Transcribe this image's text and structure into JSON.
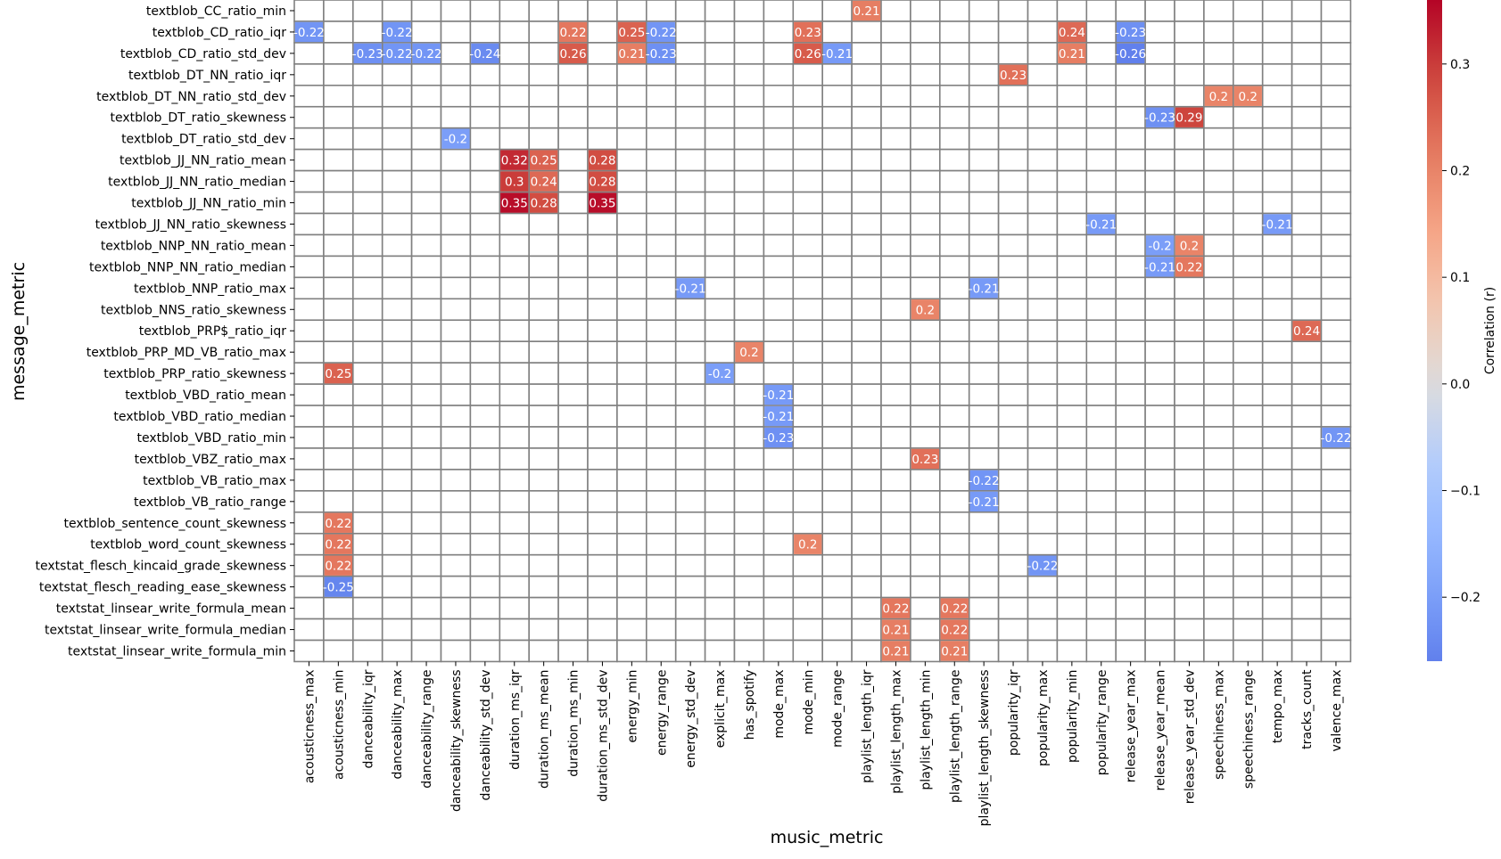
{
  "chart_data": {
    "type": "heatmap",
    "xlabel": "music_metric",
    "ylabel": "message_metric",
    "colorbar_label": "Correlation (r)",
    "colorbar_ticks": [
      "−0.2",
      "−0.1",
      "0.0",
      "0.1",
      "0.2",
      "0.3"
    ],
    "colorbar_tick_values": [
      -0.2,
      -0.1,
      0.0,
      0.1,
      0.2,
      0.3
    ],
    "vmin": -0.26,
    "vmax": 0.36,
    "colormap": "coolwarm",
    "x_categories": [
      "acousticness_max",
      "acousticness_min",
      "danceability_iqr",
      "danceability_max",
      "danceability_range",
      "danceability_skewness",
      "danceability_std_dev",
      "duration_ms_iqr",
      "duration_ms_mean",
      "duration_ms_min",
      "duration_ms_std_dev",
      "energy_min",
      "energy_range",
      "energy_std_dev",
      "explicit_max",
      "has_spotify",
      "mode_max",
      "mode_min",
      "mode_range",
      "playlist_length_iqr",
      "playlist_length_max",
      "playlist_length_min",
      "playlist_length_range",
      "playlist_length_skewness",
      "popularity_iqr",
      "popularity_max",
      "popularity_min",
      "popularity_range",
      "release_year_max",
      "release_year_mean",
      "release_year_std_dev",
      "speechiness_max",
      "speechiness_range",
      "tempo_max",
      "tracks_count",
      "valence_max"
    ],
    "y_categories": [
      "textblob_CC_ratio_min",
      "textblob_CD_ratio_iqr",
      "textblob_CD_ratio_std_dev",
      "textblob_DT_NN_ratio_iqr",
      "textblob_DT_NN_ratio_std_dev",
      "textblob_DT_ratio_skewness",
      "textblob_DT_ratio_std_dev",
      "textblob_JJ_NN_ratio_mean",
      "textblob_JJ_NN_ratio_median",
      "textblob_JJ_NN_ratio_min",
      "textblob_JJ_NN_ratio_skewness",
      "textblob_NNP_NN_ratio_mean",
      "textblob_NNP_NN_ratio_median",
      "textblob_NNP_ratio_max",
      "textblob_NNS_ratio_skewness",
      "textblob_PRP$_ratio_iqr",
      "textblob_PRP_MD_VB_ratio_max",
      "textblob_PRP_ratio_skewness",
      "textblob_VBD_ratio_mean",
      "textblob_VBD_ratio_median",
      "textblob_VBD_ratio_min",
      "textblob_VBZ_ratio_max",
      "textblob_VB_ratio_max",
      "textblob_VB_ratio_range",
      "textblob_sentence_count_skewness",
      "textblob_word_count_skewness",
      "textstat_flesch_kincaid_grade_skewness",
      "textstat_flesch_reading_ease_skewness",
      "textstat_linsear_write_formula_mean",
      "textstat_linsear_write_formula_median",
      "textstat_linsear_write_formula_min"
    ],
    "cells": [
      {
        "row": 0,
        "col": 19,
        "value": 0.21
      },
      {
        "row": 1,
        "col": 0,
        "value": -0.22
      },
      {
        "row": 1,
        "col": 3,
        "value": -0.22
      },
      {
        "row": 1,
        "col": 9,
        "value": 0.22
      },
      {
        "row": 1,
        "col": 11,
        "value": 0.25
      },
      {
        "row": 1,
        "col": 12,
        "value": -0.22
      },
      {
        "row": 1,
        "col": 17,
        "value": 0.23
      },
      {
        "row": 1,
        "col": 26,
        "value": 0.24
      },
      {
        "row": 1,
        "col": 28,
        "value": -0.23
      },
      {
        "row": 2,
        "col": 2,
        "value": -0.23
      },
      {
        "row": 2,
        "col": 3,
        "value": -0.22
      },
      {
        "row": 2,
        "col": 4,
        "value": -0.22
      },
      {
        "row": 2,
        "col": 6,
        "value": -0.24
      },
      {
        "row": 2,
        "col": 9,
        "value": 0.26
      },
      {
        "row": 2,
        "col": 11,
        "value": 0.21
      },
      {
        "row": 2,
        "col": 12,
        "value": -0.23
      },
      {
        "row": 2,
        "col": 17,
        "value": 0.26
      },
      {
        "row": 2,
        "col": 18,
        "value": -0.21
      },
      {
        "row": 2,
        "col": 26,
        "value": 0.21
      },
      {
        "row": 2,
        "col": 28,
        "value": -0.26
      },
      {
        "row": 3,
        "col": 24,
        "value": 0.23
      },
      {
        "row": 4,
        "col": 31,
        "value": 0.2
      },
      {
        "row": 4,
        "col": 32,
        "value": 0.2
      },
      {
        "row": 5,
        "col": 29,
        "value": -0.23
      },
      {
        "row": 5,
        "col": 30,
        "value": 0.29
      },
      {
        "row": 6,
        "col": 5,
        "value": -0.2
      },
      {
        "row": 7,
        "col": 7,
        "value": 0.32
      },
      {
        "row": 7,
        "col": 8,
        "value": 0.25
      },
      {
        "row": 7,
        "col": 10,
        "value": 0.28
      },
      {
        "row": 8,
        "col": 7,
        "value": 0.3
      },
      {
        "row": 8,
        "col": 8,
        "value": 0.24
      },
      {
        "row": 8,
        "col": 10,
        "value": 0.28
      },
      {
        "row": 9,
        "col": 7,
        "value": 0.35
      },
      {
        "row": 9,
        "col": 8,
        "value": 0.28
      },
      {
        "row": 9,
        "col": 10,
        "value": 0.35
      },
      {
        "row": 10,
        "col": 27,
        "value": -0.21
      },
      {
        "row": 10,
        "col": 33,
        "value": -0.21
      },
      {
        "row": 11,
        "col": 29,
        "value": -0.2
      },
      {
        "row": 11,
        "col": 30,
        "value": 0.2
      },
      {
        "row": 12,
        "col": 29,
        "value": -0.21
      },
      {
        "row": 12,
        "col": 30,
        "value": 0.22
      },
      {
        "row": 13,
        "col": 13,
        "value": -0.21
      },
      {
        "row": 13,
        "col": 23,
        "value": -0.21
      },
      {
        "row": 14,
        "col": 21,
        "value": 0.2
      },
      {
        "row": 15,
        "col": 34,
        "value": 0.24
      },
      {
        "row": 16,
        "col": 15,
        "value": 0.2
      },
      {
        "row": 17,
        "col": 1,
        "value": 0.25
      },
      {
        "row": 17,
        "col": 14,
        "value": -0.2
      },
      {
        "row": 18,
        "col": 16,
        "value": -0.21
      },
      {
        "row": 19,
        "col": 16,
        "value": -0.21
      },
      {
        "row": 20,
        "col": 16,
        "value": -0.23
      },
      {
        "row": 20,
        "col": 35,
        "value": -0.22
      },
      {
        "row": 21,
        "col": 21,
        "value": 0.23
      },
      {
        "row": 22,
        "col": 23,
        "value": -0.22
      },
      {
        "row": 23,
        "col": 23,
        "value": -0.21
      },
      {
        "row": 24,
        "col": 1,
        "value": 0.22
      },
      {
        "row": 25,
        "col": 1,
        "value": 0.22
      },
      {
        "row": 25,
        "col": 17,
        "value": 0.2
      },
      {
        "row": 26,
        "col": 1,
        "value": 0.22
      },
      {
        "row": 26,
        "col": 25,
        "value": -0.22
      },
      {
        "row": 27,
        "col": 1,
        "value": -0.25
      },
      {
        "row": 28,
        "col": 20,
        "value": 0.22
      },
      {
        "row": 28,
        "col": 22,
        "value": 0.22
      },
      {
        "row": 29,
        "col": 20,
        "value": 0.21
      },
      {
        "row": 29,
        "col": 22,
        "value": 0.22
      },
      {
        "row": 30,
        "col": 20,
        "value": 0.21
      },
      {
        "row": 30,
        "col": 22,
        "value": 0.21
      }
    ]
  }
}
